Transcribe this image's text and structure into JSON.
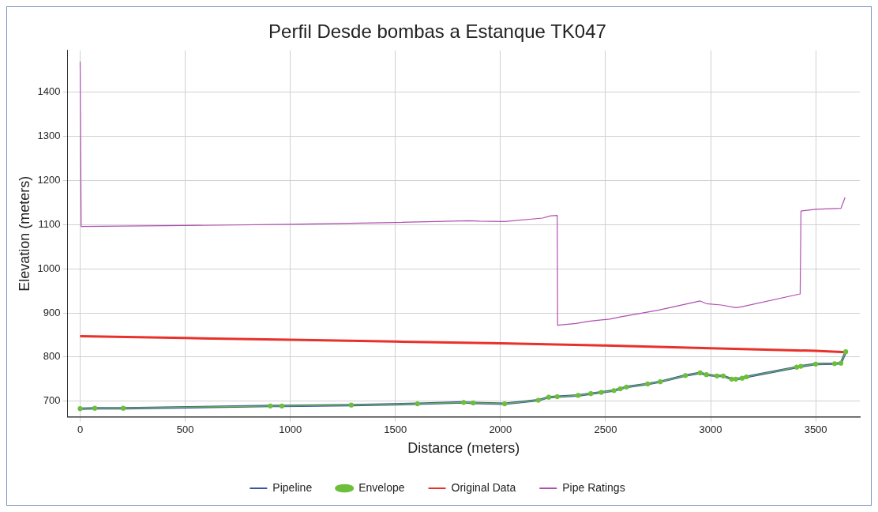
{
  "chart_data": {
    "type": "line",
    "title": "Perfil Desde bombas a Estanque TK047",
    "xlabel": "Distance (meters)",
    "ylabel": "Elevation (meters)",
    "xlim": [
      -60,
      3710
    ],
    "ylim": [
      664,
      1495
    ],
    "xticks": [
      0,
      500,
      1000,
      1500,
      2000,
      2500,
      3000,
      3500
    ],
    "yticks": [
      700,
      800,
      900,
      1000,
      1100,
      1200,
      1300,
      1400
    ],
    "grid": true,
    "legend": "bottom",
    "line_style": "solid",
    "series": [
      {
        "name": "Pipeline",
        "color": "#3a53a4",
        "marker": "none",
        "x": [
          0,
          70,
          205,
          905,
          960,
          1290,
          1605,
          1825,
          1870,
          2020,
          2180,
          2230,
          2270,
          2370,
          2430,
          2480,
          2540,
          2570,
          2600,
          2700,
          2760,
          2880,
          2950,
          2980,
          3030,
          3060,
          3100,
          3120,
          3150,
          3170,
          3410,
          3430,
          3500,
          3590,
          3620,
          3643
        ],
        "values": [
          683,
          684,
          684,
          689,
          689,
          691,
          694,
          697,
          696,
          694,
          702,
          709,
          710,
          713,
          717,
          720,
          724,
          728,
          732,
          739,
          744,
          758,
          764,
          760,
          757,
          757,
          750,
          750,
          752,
          755,
          777,
          779,
          784,
          785,
          786,
          812
        ]
      },
      {
        "name": "Envelope",
        "color": "#6cbf3a",
        "marker": "circle",
        "x": [
          0,
          70,
          205,
          905,
          960,
          1290,
          1605,
          1825,
          1870,
          2020,
          2180,
          2230,
          2270,
          2370,
          2430,
          2480,
          2540,
          2570,
          2600,
          2700,
          2760,
          2880,
          2950,
          2980,
          3030,
          3060,
          3100,
          3120,
          3150,
          3170,
          3410,
          3430,
          3500,
          3590,
          3620,
          3643
        ],
        "values": [
          683,
          684,
          684,
          689,
          689,
          691,
          694,
          697,
          696,
          694,
          702,
          709,
          710,
          713,
          717,
          720,
          724,
          728,
          732,
          739,
          744,
          758,
          764,
          760,
          757,
          757,
          750,
          750,
          752,
          755,
          777,
          779,
          784,
          785,
          786,
          812
        ]
      },
      {
        "name": "Original Data",
        "color": "#e8312a",
        "marker": "none",
        "x": [
          0,
          500,
          1000,
          1500,
          2000,
          2500,
          3000,
          3500,
          3643
        ],
        "values": [
          847,
          843,
          839,
          835,
          831,
          826,
          820,
          814,
          811
        ]
      },
      {
        "name": "Pipe Ratings",
        "color": "#b04fb0",
        "marker": "none",
        "x": [
          0,
          5,
          500,
          1000,
          1500,
          1850,
          1900,
          2020,
          2200,
          2240,
          2270,
          2272,
          2360,
          2420,
          2520,
          2570,
          2750,
          2950,
          2980,
          3050,
          3120,
          3150,
          3426,
          3430,
          3500,
          3620,
          3640
        ],
        "values": [
          1470,
          1096,
          1098,
          1101,
          1105,
          1109,
          1108,
          1107,
          1115,
          1120,
          1121,
          872,
          876,
          881,
          886,
          891,
          906,
          927,
          921,
          918,
          912,
          914,
          943,
          1131,
          1135,
          1137,
          1162
        ]
      }
    ]
  }
}
